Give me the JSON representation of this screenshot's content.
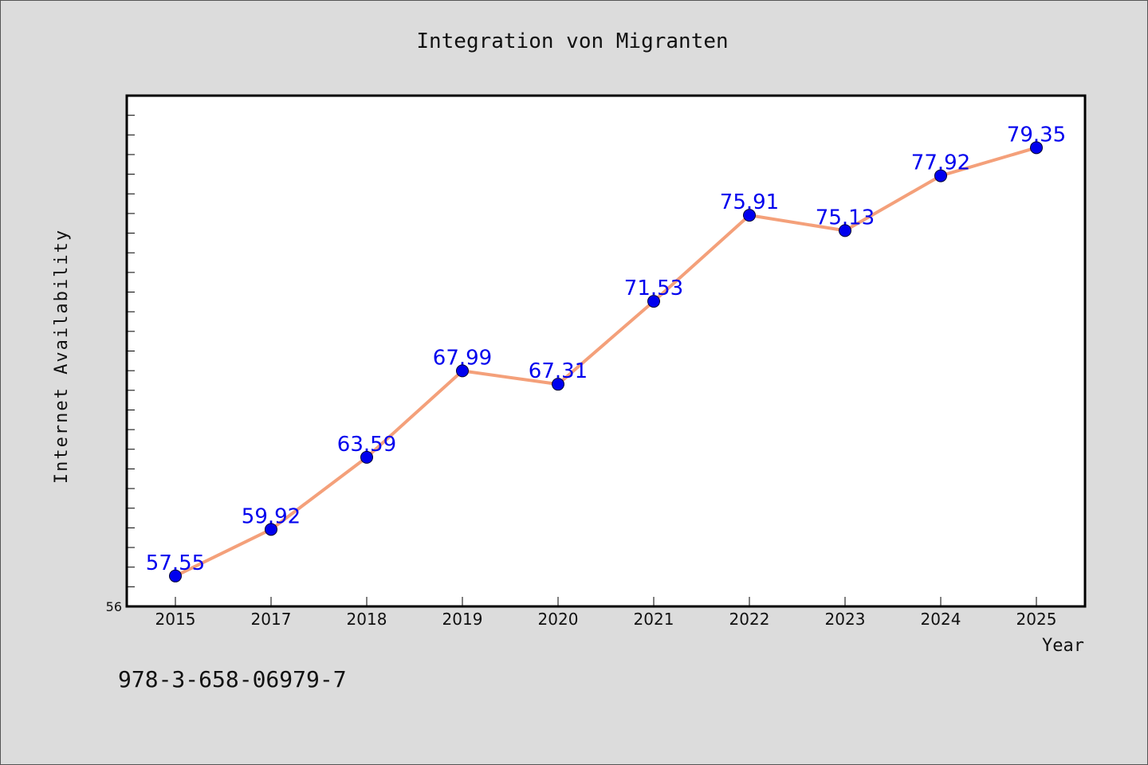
{
  "chart_data": {
    "type": "line",
    "title": "Integration von Migranten",
    "xlabel": "Year",
    "ylabel": "Internet Availability",
    "categories": [
      "2015",
      "2017",
      "2018",
      "2019",
      "2020",
      "2021",
      "2022",
      "2023",
      "2024",
      "2025"
    ],
    "series": [
      {
        "values": [
          57.55,
          59.92,
          63.59,
          67.99,
          67.31,
          71.53,
          75.91,
          75.13,
          77.92,
          79.35
        ],
        "labels": [
          "57.55",
          "59.92",
          "63.59",
          "67.99",
          "67.31",
          "71.53",
          "75.91",
          "75.13",
          "77.92",
          "79.35"
        ]
      }
    ],
    "ylim": [
      56,
      82
    ],
    "y_tick_labels": [
      "56"
    ],
    "grid": false,
    "colors": {
      "line": "#f4a07a",
      "marker": "#0000ee",
      "label": "#0000ee",
      "plot_background": "#ffffff",
      "page_background": "#dcdcdc"
    }
  },
  "footer": {
    "isbn": "978-3-658-06979-7"
  }
}
